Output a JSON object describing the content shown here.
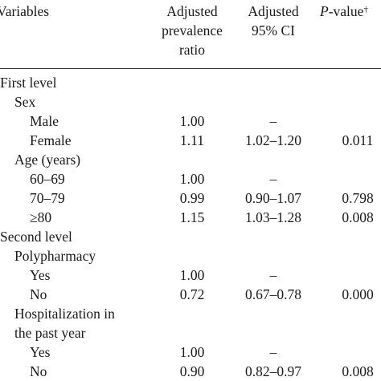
{
  "header": {
    "variables": "Variables",
    "apr_line1": "Adjusted",
    "apr_line2": "prevalence",
    "apr_line3": "ratio",
    "ci_line1": "Adjusted",
    "ci_line2": "95% CI",
    "p_label": "P",
    "p_suffix": "-value",
    "p_dagger": "†"
  },
  "rows": [
    {
      "label": "First level",
      "apr": "",
      "ci": "",
      "p": ""
    },
    {
      "label": "Sex",
      "apr": "",
      "ci": "",
      "p": ""
    },
    {
      "label": "Male",
      "apr": "1.00",
      "ci": "–",
      "p": ""
    },
    {
      "label": "Female",
      "apr": "1.11",
      "ci": "1.02–1.20",
      "p": "0.011"
    },
    {
      "label": "Age (years)",
      "apr": "",
      "ci": "",
      "p": ""
    },
    {
      "label": "60–69",
      "apr": "1.00",
      "ci": "–",
      "p": ""
    },
    {
      "label": "70–79",
      "apr": "0.99",
      "ci": "0.90–1.07",
      "p": "0.798"
    },
    {
      "label": "≥80",
      "apr": "1.15",
      "ci": "1.03–1.28",
      "p": "0.008"
    },
    {
      "label": "Second level",
      "apr": "",
      "ci": "",
      "p": ""
    },
    {
      "label": "Polypharmacy",
      "apr": "",
      "ci": "",
      "p": ""
    },
    {
      "label": "Yes",
      "apr": "1.00",
      "ci": "–",
      "p": ""
    },
    {
      "label": "No",
      "apr": "0.72",
      "ci": "0.67–0.78",
      "p": "0.000"
    },
    {
      "label": "Hospitalization in",
      "apr": "",
      "ci": "",
      "p": ""
    },
    {
      "label": "the past year",
      "apr": "",
      "ci": "",
      "p": ""
    },
    {
      "label": "Yes",
      "apr": "1.00",
      "ci": "–",
      "p": ""
    },
    {
      "label": "No",
      "apr": "0.90",
      "ci": "0.82–0.97",
      "p": "0.008"
    }
  ]
}
